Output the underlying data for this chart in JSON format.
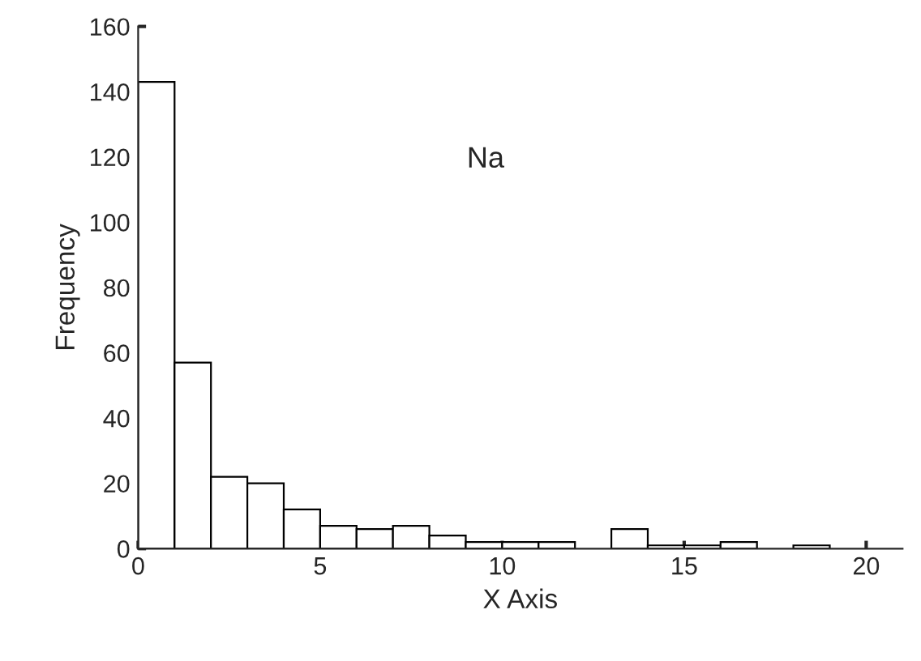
{
  "chart_data": {
    "type": "histogram",
    "xlabel": "X Axis",
    "ylabel": "Frequency",
    "annotations": [
      "Na"
    ],
    "bins": [
      0,
      1,
      2,
      3,
      4,
      5,
      6,
      7,
      8,
      9,
      10,
      11,
      12,
      13,
      14,
      15,
      16,
      17,
      18,
      19,
      20
    ],
    "values": [
      143,
      57,
      22,
      20,
      12,
      7,
      6,
      7,
      4,
      2,
      2,
      2,
      0,
      6,
      1,
      1,
      2,
      0,
      1,
      0
    ],
    "color": "#ffffff",
    "xlim": [
      0,
      21
    ],
    "xticks": [
      0,
      5,
      10,
      15,
      20
    ],
    "ylim": [
      0,
      160
    ],
    "yticks": [
      0,
      20,
      40,
      60,
      80,
      100,
      120,
      140,
      160
    ],
    "grid": false
  }
}
